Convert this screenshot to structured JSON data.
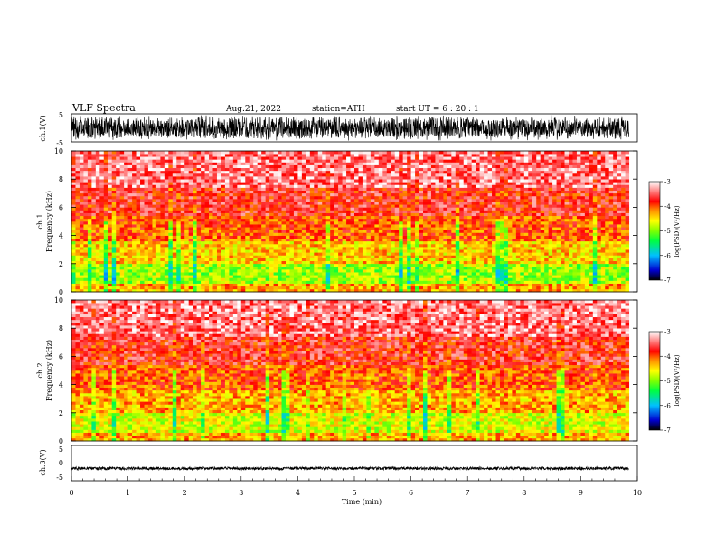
{
  "header": {
    "title": "VLF  Spectra",
    "date": "Aug.21, 2022",
    "station": "station=ATH",
    "start": "start  UT  =   6  : 20 : 1"
  },
  "chart_data": [
    {
      "type": "line",
      "id": "ch1-waveform",
      "ylabel": "ch.1(V)",
      "xlim": [
        0,
        10
      ],
      "ylim": [
        -5,
        5
      ],
      "yticks": [
        "5",
        "-5"
      ],
      "x_end_min": 9.85,
      "amplitude": "full-scale ±5 V noise-like waveform"
    },
    {
      "type": "heatmap",
      "id": "ch1-spectrogram",
      "ylabel": "ch.1\nFrequency  (kHz)",
      "xlim": [
        0,
        10
      ],
      "ylim": [
        0,
        10
      ],
      "yticks": [
        "0",
        "2",
        "4",
        "6",
        "8",
        "10"
      ],
      "colorbar": {
        "label": "log(PSD)(V²/Hz)",
        "range": [
          -7,
          -3
        ],
        "ticks": [
          "-3",
          "-4",
          "-5",
          "-6",
          "-7"
        ]
      },
      "bands_khz_logpsd": [
        {
          "f": [
            0,
            0.6
          ],
          "log_psd": -4.3
        },
        {
          "f": [
            0.6,
            2.1
          ],
          "log_psd": -4.9
        },
        {
          "f": [
            2.1,
            3.6
          ],
          "log_psd": -4.4
        },
        {
          "f": [
            3.6,
            5.5
          ],
          "log_psd": -4.0
        },
        {
          "f": [
            5.5,
            7.5
          ],
          "log_psd": -3.7
        },
        {
          "f": [
            7.5,
            10
          ],
          "log_psd": -3.4
        }
      ]
    },
    {
      "type": "heatmap",
      "id": "ch2-spectrogram",
      "ylabel": "ch.2\nFrequency  (kHz)",
      "xlim": [
        0,
        10
      ],
      "ylim": [
        0,
        10
      ],
      "yticks": [
        "0",
        "2",
        "4",
        "6",
        "8",
        "10"
      ],
      "colorbar": {
        "label": "log(PSD)(V²/Hz)",
        "range": [
          -7,
          -3
        ],
        "ticks": [
          "-3",
          "-4",
          "-5",
          "-6",
          "-7"
        ]
      },
      "bands_khz_logpsd": [
        {
          "f": [
            0,
            0.6
          ],
          "log_psd": -4.3
        },
        {
          "f": [
            0.6,
            2.1
          ],
          "log_psd": -4.7
        },
        {
          "f": [
            2.1,
            3.6
          ],
          "log_psd": -4.3
        },
        {
          "f": [
            3.6,
            5.5
          ],
          "log_psd": -4.0
        },
        {
          "f": [
            5.5,
            7.5
          ],
          "log_psd": -3.7
        },
        {
          "f": [
            7.5,
            10
          ],
          "log_psd": -3.4
        }
      ]
    },
    {
      "type": "line",
      "id": "ch3-waveform",
      "ylabel": "ch.3(V)",
      "xlabel": "Time  (min)",
      "xlim": [
        0,
        10
      ],
      "ylim": [
        -5,
        5
      ],
      "yticks": [
        "5",
        "0",
        "-5"
      ],
      "xticks": [
        "0",
        "1",
        "2",
        "3",
        "4",
        "5",
        "6",
        "7",
        "8",
        "9",
        "10"
      ],
      "x_end_min": 9.85,
      "offset_v": -1.5,
      "amplitude": "small, about ±0.4 V"
    }
  ],
  "colors": {
    "colormap": [
      "#000000",
      "#0000d0",
      "#00c0ff",
      "#00ff40",
      "#80ff00",
      "#ffff00",
      "#ff8000",
      "#ff0000",
      "#ff8080",
      "#ffffff"
    ],
    "axes": "#000000",
    "background": "#ffffff"
  }
}
